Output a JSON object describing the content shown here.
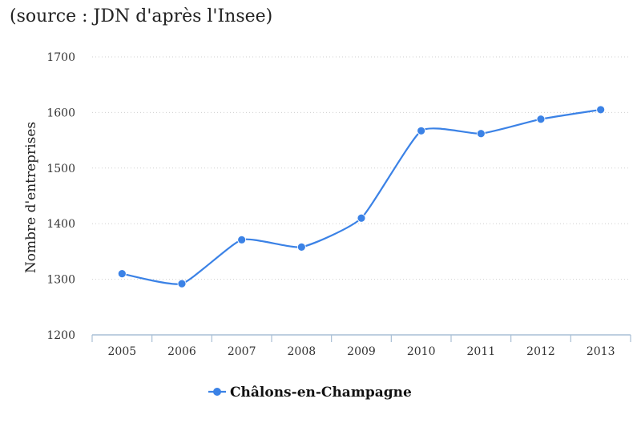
{
  "chart_data": {
    "type": "line",
    "subtitle": "(source : JDN d'après l'Insee)",
    "ylabel": "Nombre d'entreprises",
    "categories": [
      "2005",
      "2006",
      "2007",
      "2008",
      "2009",
      "2010",
      "2011",
      "2012",
      "2013"
    ],
    "ylim": [
      1200,
      1700
    ],
    "yticks": [
      "1200",
      "1300",
      "1400",
      "1500",
      "1600",
      "1700"
    ],
    "series": [
      {
        "name": "Châlons-en-Champagne",
        "color": "#3b82e6",
        "values": [
          1310,
          1292,
          1371,
          1358,
          1410,
          1567,
          1562,
          1588,
          1605
        ]
      }
    ],
    "legend_position": "bottom-center",
    "grid": true
  }
}
